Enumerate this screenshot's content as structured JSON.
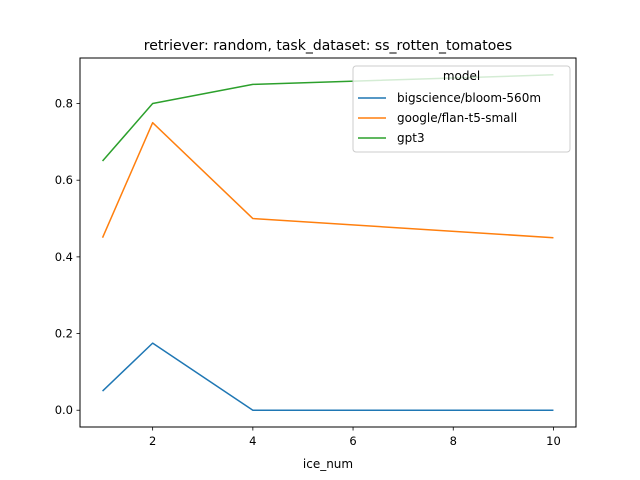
{
  "chart_data": {
    "type": "line",
    "title": "retriever: random, task_dataset: ss_rotten_tomatoes",
    "xlabel": "ice_num",
    "ylabel": "",
    "xlim": [
      0.55,
      10.45
    ],
    "ylim": [
      -0.04375,
      0.91875
    ],
    "x_ticks": [
      2,
      4,
      6,
      8,
      10
    ],
    "y_ticks": [
      0.0,
      0.2,
      0.4,
      0.6,
      0.8
    ],
    "x_tick_labels": [
      "2",
      "4",
      "6",
      "8",
      "10"
    ],
    "y_tick_labels": [
      "0.0",
      "0.2",
      "0.4",
      "0.6",
      "0.8"
    ],
    "grid": false,
    "legend": {
      "title": "model",
      "placement": "top-right"
    },
    "x": [
      1,
      2,
      4,
      10
    ],
    "series": [
      {
        "name": "bigscience/bloom-560m",
        "color": "#1f77b4",
        "values": [
          0.05,
          0.175,
          0.0,
          0.0
        ]
      },
      {
        "name": "google/flan-t5-small",
        "color": "#ff7f0e",
        "values": [
          0.45,
          0.75,
          0.5,
          0.45
        ]
      },
      {
        "name": "gpt3",
        "color": "#2ca02c",
        "values": [
          0.65,
          0.8,
          0.85,
          0.875
        ]
      }
    ]
  }
}
